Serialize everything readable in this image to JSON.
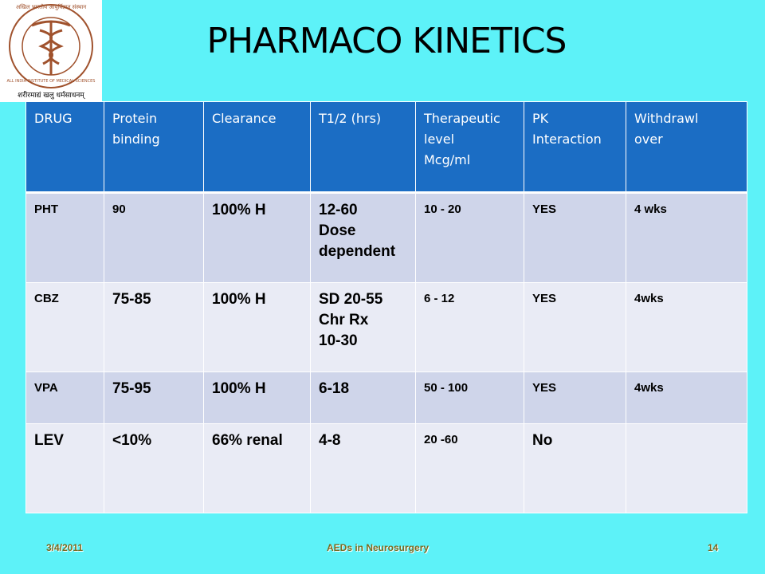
{
  "logo": {
    "hindi_name": "अखिल भारतीय आयुर्विज्ञान संस्थान",
    "english_name": "ALL INDIA INSTITUTE OF MEDICAL SCIENCES",
    "motto": "शरीरमाद्यं खलु धर्मसाधनम्"
  },
  "header": {
    "title": "PHARMACO KINETICS"
  },
  "table": {
    "columns": [
      [
        "DRUG"
      ],
      [
        "Protein",
        "binding"
      ],
      [
        "Clearance"
      ],
      [
        "T1/2 (hrs)"
      ],
      [
        "Therapeutic",
        "level",
        "Mcg/ml"
      ],
      [
        "PK",
        "Interaction"
      ],
      [
        "Withdrawl",
        "over"
      ]
    ],
    "rows": [
      [
        [
          "PHT"
        ],
        [
          "90"
        ],
        [
          "100% H"
        ],
        [
          "12-60",
          "Dose",
          "dependent"
        ],
        [
          "10 - 20"
        ],
        [
          "YES"
        ],
        [
          "4 wks"
        ]
      ],
      [
        [
          "CBZ"
        ],
        [
          "75-85"
        ],
        [
          "100% H"
        ],
        [
          "SD 20-55",
          "Chr Rx",
          "10-30"
        ],
        [
          "6 - 12"
        ],
        [
          "YES"
        ],
        [
          "4wks"
        ]
      ],
      [
        [
          "VPA"
        ],
        [
          "75-95"
        ],
        [
          "100% H"
        ],
        [
          "6-18"
        ],
        [
          "50 - 100"
        ],
        [
          "YES"
        ],
        [
          "4wks"
        ]
      ],
      [
        [
          "LEV"
        ],
        [
          "<10%"
        ],
        [
          "66% renal"
        ],
        [
          "4-8"
        ],
        [
          "20 -60"
        ],
        [
          "No"
        ],
        []
      ]
    ]
  },
  "footer": {
    "date": "3/4/2011",
    "topic": "AEDs in Neurosurgery",
    "page": "14"
  }
}
